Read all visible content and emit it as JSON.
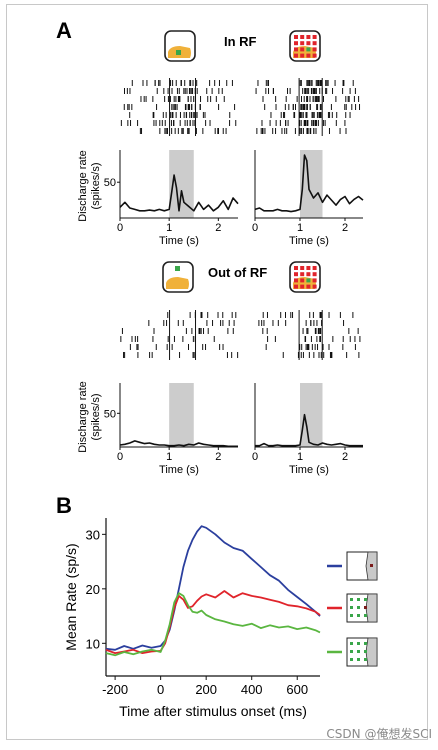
{
  "panels": {
    "a": {
      "letter": "A",
      "in_rf_label": "In RF",
      "out_rf_label": "Out of RF"
    },
    "b": {
      "letter": "B"
    }
  },
  "colors": {
    "blue": "#2b3f9e",
    "red": "#e0242b",
    "green": "#5ab640",
    "gray_window": "#cccccc",
    "stim_orange": "#f0b13a",
    "stim_red": "#e0242b",
    "stim_green": "#3aa64a"
  },
  "icons": [
    "in-rf-single-stimulus-icon",
    "in-rf-array-icon",
    "out-rf-single-stimulus-icon",
    "out-rf-array-icon",
    "legend-blue-icon",
    "legend-red-icon",
    "legend-green-icon"
  ],
  "chart_data": [
    {
      "type": "line",
      "panel": "A",
      "condition": "In RF - single stimulus",
      "xlabel": "Time (s)",
      "ylabel": "Discharge rate (spikes/s)",
      "xticks": [
        0,
        1,
        2
      ],
      "yticks": [
        50
      ],
      "xlim": [
        0,
        2.4
      ],
      "ylim": [
        0,
        95
      ],
      "stim_window": [
        1.0,
        1.5
      ],
      "x": [
        0,
        0.1,
        0.2,
        0.3,
        0.4,
        0.5,
        0.6,
        0.7,
        0.8,
        0.9,
        1.0,
        1.05,
        1.1,
        1.15,
        1.2,
        1.25,
        1.3,
        1.4,
        1.5,
        1.6,
        1.7,
        1.8,
        1.9,
        2.0,
        2.1,
        2.2,
        2.3,
        2.4
      ],
      "y": [
        15,
        22,
        14,
        12,
        10,
        10,
        11,
        10,
        12,
        10,
        12,
        35,
        60,
        42,
        10,
        38,
        22,
        16,
        10,
        22,
        12,
        18,
        10,
        15,
        24,
        12,
        28,
        20
      ]
    },
    {
      "type": "line",
      "panel": "A",
      "condition": "In RF - array",
      "xlabel": "Time (s)",
      "ylabel": "",
      "xticks": [
        0,
        1,
        2
      ],
      "yticks": [],
      "xlim": [
        0,
        2.4
      ],
      "ylim": [
        0,
        95
      ],
      "stim_window": [
        1.0,
        1.5
      ],
      "x": [
        0,
        0.1,
        0.2,
        0.3,
        0.4,
        0.5,
        0.6,
        0.7,
        0.8,
        0.9,
        1.0,
        1.05,
        1.1,
        1.15,
        1.2,
        1.3,
        1.4,
        1.5,
        1.6,
        1.7,
        1.8,
        1.9,
        2.0,
        2.1,
        2.2,
        2.3,
        2.4
      ],
      "y": [
        12,
        14,
        10,
        10,
        10,
        12,
        10,
        10,
        9,
        10,
        12,
        40,
        88,
        80,
        40,
        28,
        35,
        22,
        32,
        25,
        18,
        26,
        30,
        20,
        26,
        30,
        25
      ]
    },
    {
      "type": "line",
      "panel": "A",
      "condition": "Out of RF - single stimulus",
      "xlabel": "Time (s)",
      "ylabel": "Discharge rate (spikes/s)",
      "xticks": [
        0,
        1,
        2
      ],
      "yticks": [
        50
      ],
      "xlim": [
        0,
        2.4
      ],
      "ylim": [
        0,
        95
      ],
      "stim_window": [
        1.0,
        1.5
      ],
      "x": [
        0,
        0.1,
        0.2,
        0.3,
        0.4,
        0.5,
        0.6,
        0.7,
        0.8,
        0.9,
        1.0,
        1.1,
        1.2,
        1.3,
        1.4,
        1.5,
        1.6,
        1.7,
        1.8,
        1.9,
        2.0,
        2.1,
        2.2,
        2.3,
        2.4
      ],
      "y": [
        3,
        4,
        6,
        9,
        7,
        5,
        6,
        4,
        3,
        3,
        2,
        2,
        3,
        2,
        4,
        3,
        6,
        4,
        3,
        2,
        2,
        2,
        1,
        1,
        1
      ]
    },
    {
      "type": "line",
      "panel": "A",
      "condition": "Out of RF - array",
      "xlabel": "Time (s)",
      "ylabel": "",
      "xticks": [
        0,
        1,
        2
      ],
      "yticks": [],
      "xlim": [
        0,
        2.4
      ],
      "ylim": [
        0,
        95
      ],
      "stim_window": [
        1.0,
        1.5
      ],
      "x": [
        0,
        0.1,
        0.2,
        0.3,
        0.4,
        0.5,
        0.6,
        0.7,
        0.8,
        0.9,
        1.0,
        1.05,
        1.1,
        1.15,
        1.2,
        1.3,
        1.4,
        1.5,
        1.6,
        1.7,
        1.8,
        1.9,
        2.0,
        2.1,
        2.2,
        2.3,
        2.4
      ],
      "y": [
        2,
        2,
        5,
        2,
        2,
        3,
        2,
        2,
        2,
        2,
        3,
        25,
        48,
        30,
        7,
        4,
        3,
        6,
        4,
        3,
        4,
        5,
        3,
        2,
        2,
        2,
        2
      ]
    },
    {
      "type": "line",
      "panel": "B",
      "xlabel": "Time after stimulus onset (ms)",
      "ylabel": "Mean Rate (sp/s)",
      "xticks": [
        -200,
        0,
        200,
        400,
        600
      ],
      "yticks": [
        10,
        20,
        30
      ],
      "xlim": [
        -240,
        700
      ],
      "ylim": [
        4,
        33
      ],
      "x": [
        -240,
        -200,
        -160,
        -120,
        -80,
        -40,
        0,
        20,
        40,
        60,
        80,
        100,
        120,
        140,
        160,
        180,
        200,
        240,
        280,
        320,
        360,
        400,
        440,
        480,
        520,
        560,
        600,
        640,
        680,
        700
      ],
      "series": [
        {
          "color": "#2b3f9e",
          "values": [
            9,
            8.8,
            9.5,
            9,
            9.6,
            9.2,
            9.5,
            10.5,
            12.5,
            16,
            20,
            24,
            27,
            29,
            30.5,
            31.5,
            31.2,
            30,
            28.5,
            27.5,
            27,
            25.5,
            24,
            22.5,
            21.5,
            19.8,
            18.5,
            17.2,
            15.8,
            15
          ]
        },
        {
          "color": "#e0242b",
          "values": [
            8.8,
            8.2,
            8.5,
            8.8,
            8.2,
            8.5,
            8.6,
            10,
            13,
            16.5,
            18.7,
            18,
            16.5,
            16.8,
            17.8,
            18.6,
            19,
            18.4,
            19.6,
            18.4,
            19.2,
            18.7,
            18.4,
            18,
            17.6,
            17,
            16.8,
            16.4,
            15.8,
            15.2
          ]
        },
        {
          "color": "#5ab640",
          "values": [
            8.2,
            7.8,
            8.4,
            8,
            8.5,
            8.8,
            8.4,
            10.5,
            13.5,
            17.5,
            19.2,
            18.7,
            17,
            15.8,
            15.6,
            16,
            15.2,
            14.4,
            14,
            13.5,
            13.2,
            13.6,
            12.8,
            13.3,
            12.9,
            13.1,
            12.6,
            12.9,
            12.4,
            12
          ]
        }
      ]
    }
  ]
}
